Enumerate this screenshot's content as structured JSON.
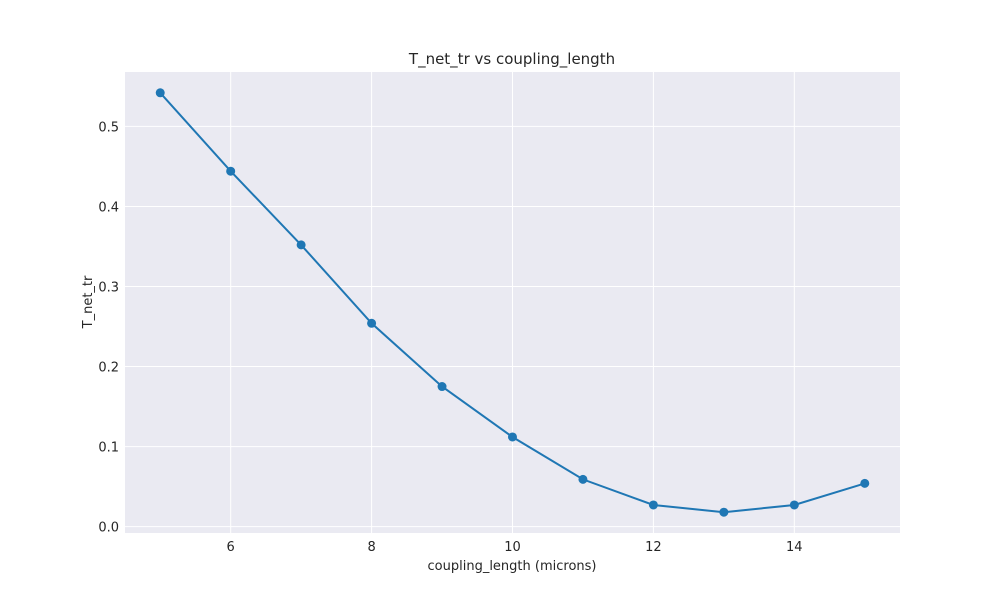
{
  "chart_data": {
    "type": "line",
    "title": "T_net_tr vs coupling_length",
    "xlabel": "coupling_length (microns)",
    "ylabel": "T_net_tr",
    "xlim": [
      4.5,
      15.5
    ],
    "ylim": [
      -0.008,
      0.568
    ],
    "xticks": [
      6,
      8,
      10,
      12,
      14
    ],
    "yticks": [
      0.0,
      0.1,
      0.2,
      0.3,
      0.4,
      0.5
    ],
    "ytick_labels": [
      "0.0",
      "0.1",
      "0.2",
      "0.3",
      "0.4",
      "0.5"
    ],
    "grid": true,
    "legend": false,
    "series": [
      {
        "color": "#1f77b4",
        "marker": "circle",
        "x": [
          5,
          6,
          7,
          8,
          9,
          10,
          11,
          12,
          13,
          14,
          15
        ],
        "y": [
          0.542,
          0.444,
          0.352,
          0.254,
          0.175,
          0.112,
          0.059,
          0.027,
          0.018,
          0.027,
          0.054
        ]
      }
    ]
  }
}
